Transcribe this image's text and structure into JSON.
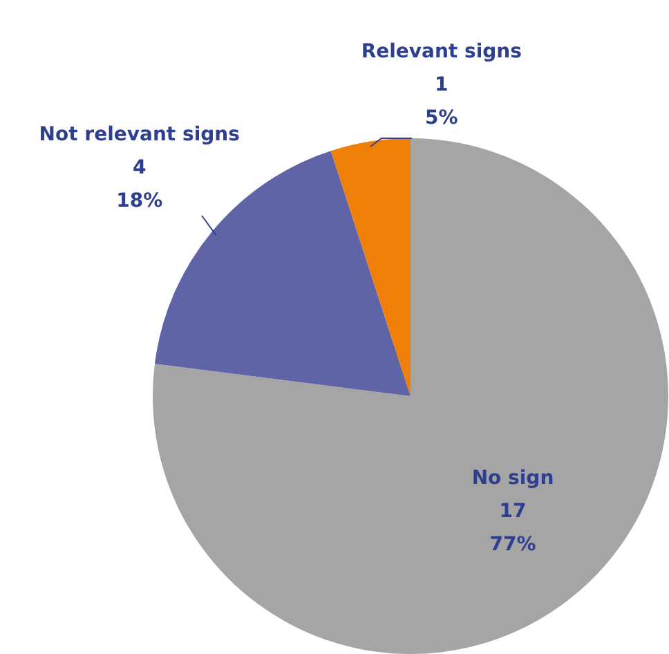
{
  "chart_data": {
    "type": "pie",
    "categories": [
      "No sign",
      "Not relevant signs",
      "Relevant signs"
    ],
    "values": [
      77,
      18,
      5
    ],
    "colors": [
      "#a5a5a5",
      "#5f64a6",
      "#f07f09"
    ],
    "value_labels": [
      "17\n77%",
      "4\n18%",
      "1\n5%"
    ],
    "legend": false
  }
}
